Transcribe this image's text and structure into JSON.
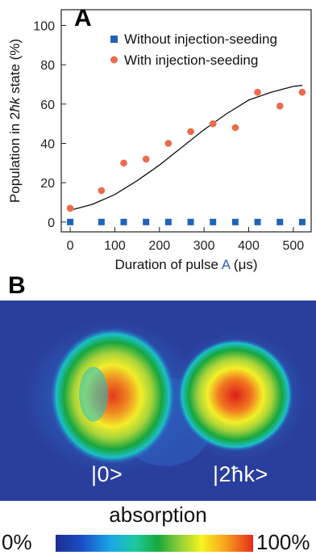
{
  "panel_a": {
    "letter": "A",
    "legend": {
      "without": "Without injection-seeding",
      "with": "With injection-seeding"
    },
    "ylabel_prefix": "Population in 2",
    "ylabel_hk": "ħk",
    "ylabel_suffix": " state (%)",
    "xlabel_prefix": "Duration of pulse ",
    "xlabel_pulse": "A",
    "xlabel_suffix": " (μs)"
  },
  "panel_b": {
    "letter": "B",
    "state_zero": "|0>",
    "state_two_hk": "|2ħk>",
    "absorption_title": "absorption",
    "scale_min": "0%",
    "scale_max": "100%"
  },
  "colors": {
    "without_marker": "#1f63b8",
    "with_marker": "#ec6a4d",
    "fit_line": "#111111",
    "pulse_label": "#2a5fb0",
    "image_background": "#2a3f9d"
  },
  "chart_data": {
    "type": "scatter",
    "x": [
      0,
      70,
      120,
      170,
      220,
      270,
      320,
      370,
      420,
      470,
      520
    ],
    "series": [
      {
        "name": "Without injection-seeding",
        "marker": "square",
        "values": [
          0,
          0,
          0,
          0,
          0,
          0,
          0,
          0,
          0,
          0,
          0
        ]
      },
      {
        "name": "With injection-seeding",
        "marker": "circle",
        "values": [
          7,
          16,
          30,
          32,
          40,
          46,
          50,
          48,
          66,
          59,
          66
        ]
      }
    ],
    "fit_curve": {
      "x": [
        0,
        50,
        100,
        150,
        200,
        250,
        300,
        350,
        400,
        450,
        500,
        520
      ],
      "y": [
        6,
        9,
        14,
        21,
        29,
        38,
        47,
        55,
        62,
        66,
        69,
        69.5
      ]
    },
    "xlim": [
      -20,
      540
    ],
    "ylim": [
      -5,
      108
    ],
    "xticks": [
      0,
      100,
      200,
      300,
      400,
      500
    ],
    "yticks": [
      0,
      20,
      40,
      60,
      80,
      100
    ],
    "grid": false,
    "legend_position": "top-right"
  }
}
